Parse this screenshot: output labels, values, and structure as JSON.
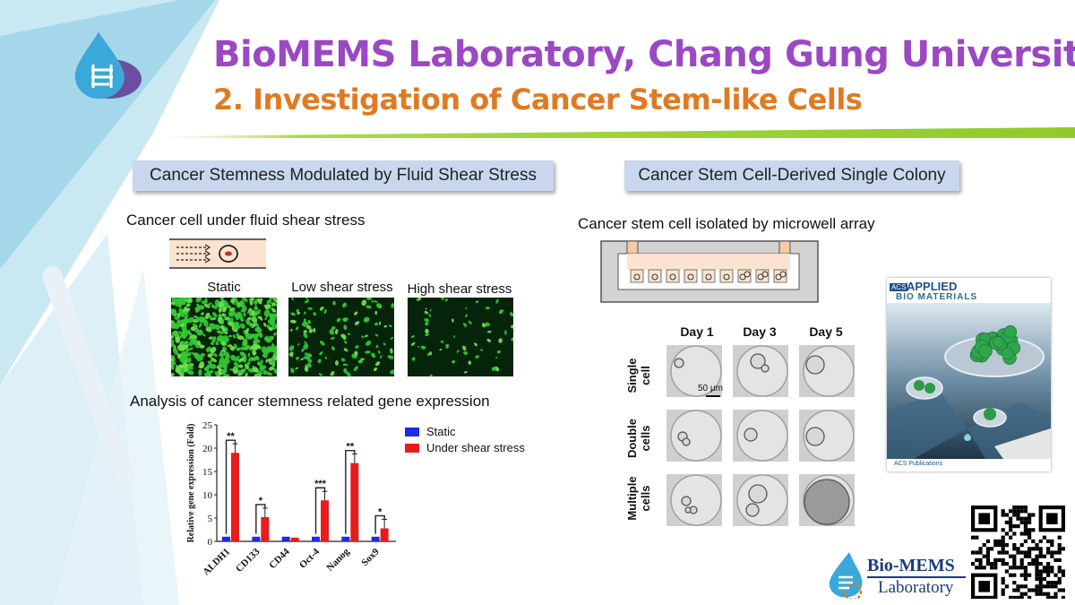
{
  "header": {
    "title": "BioMEMS Laboratory, Chang Gung University",
    "subtitle": "2. Investigation of Cancer Stem-like Cells"
  },
  "left": {
    "section_title": "Cancer Stemness Modulated by Fluid Shear Stress",
    "caption_top": "Cancer cell under fluid shear stress",
    "image_labels": [
      "Static",
      "Low shear stress",
      "High shear stress"
    ],
    "caption_analysis": "Analysis of cancer stemness related gene expression"
  },
  "right": {
    "section_title": "Cancer Stem Cell-Derived Single Colony",
    "caption_top": "Cancer stem cell isolated by microwell array",
    "days": [
      "Day 1",
      "Day 3",
      "Day 5"
    ],
    "rows": [
      "Single cell",
      "Double cells",
      "Multiple cells"
    ],
    "scale_bar": "50 μm",
    "journal": {
      "publisher": "ACS",
      "name_line1": "APPLIED",
      "name_line2": "BIO MATERIALS",
      "footer": "ACS Publications"
    }
  },
  "footer_logo": {
    "line1": "Bio-MEMS",
    "line2": "Laboratory"
  },
  "colors": {
    "title": "#9b48c4",
    "subtitle": "#e07a22",
    "static": "#1c2be6",
    "shear": "#e81c1c",
    "section_bg": "#c9d7ee"
  },
  "chart_data": {
    "type": "bar",
    "ylabel": "Relative gene expression (Fold)",
    "ylim": [
      0,
      25
    ],
    "yticks": [
      0,
      5,
      10,
      15,
      20,
      25
    ],
    "categories": [
      "ALDH1",
      "CD133",
      "CD44",
      "Oct-4",
      "Nanog",
      "Sox9"
    ],
    "series": [
      {
        "name": "Static",
        "values": [
          1,
          1,
          1,
          1,
          1,
          1
        ]
      },
      {
        "name": "Under shear stress",
        "values": [
          19,
          5.2,
          0.8,
          8.8,
          16.8,
          2.8
        ]
      }
    ],
    "significance": [
      "**",
      "*",
      "",
      "***",
      "**",
      "*"
    ],
    "legend": "right"
  }
}
